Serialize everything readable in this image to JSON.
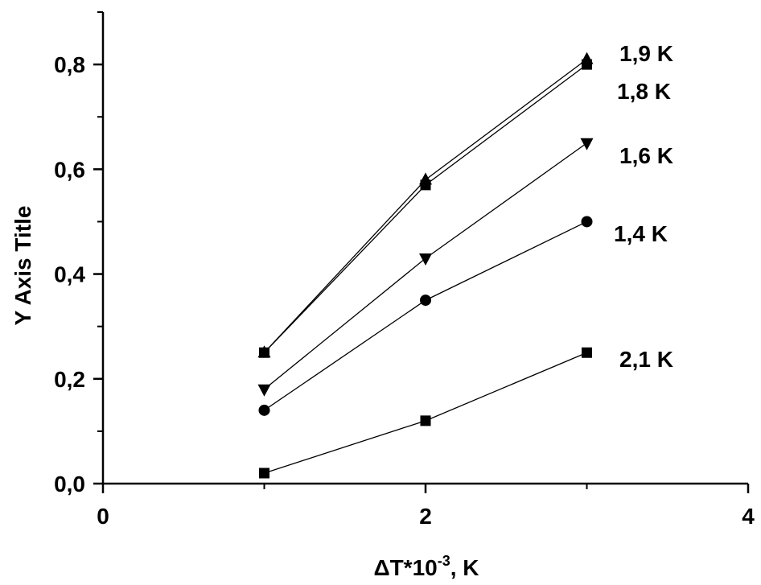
{
  "chart_data": {
    "type": "line",
    "xlabel": "ΔT*10-3, K",
    "xlabel_parts": {
      "prefix": "ΔT*10",
      "superscript": "-3",
      "suffix": ", K"
    },
    "ylabel": "Y Axis Title",
    "xlim": [
      0,
      4
    ],
    "ylim": [
      0,
      0.9
    ],
    "x_ticks": [
      0,
      2,
      4
    ],
    "x_tick_labels": [
      "0",
      "2",
      "4"
    ],
    "y_ticks": [
      0,
      0.2,
      0.4,
      0.6,
      0.8
    ],
    "y_tick_labels": [
      "0,0",
      "0,2",
      "0,4",
      "0,6",
      "0,8"
    ],
    "grid": false,
    "legend": "inline labels at right",
    "x": [
      1,
      2,
      3
    ],
    "series": [
      {
        "name": "1,9 K",
        "marker": "triangle-up",
        "values": [
          0.25,
          0.58,
          0.81
        ]
      },
      {
        "name": "1,8 K",
        "marker": "square",
        "values": [
          0.25,
          0.57,
          0.8
        ]
      },
      {
        "name": "1,6 K",
        "marker": "triangle-down",
        "values": [
          0.18,
          0.43,
          0.65
        ]
      },
      {
        "name": "1,4 K",
        "marker": "circle",
        "values": [
          0.14,
          0.35,
          0.5
        ]
      },
      {
        "name": "2,1 K",
        "marker": "square",
        "values": [
          0.02,
          0.12,
          0.25
        ]
      }
    ],
    "color": "#000000"
  }
}
